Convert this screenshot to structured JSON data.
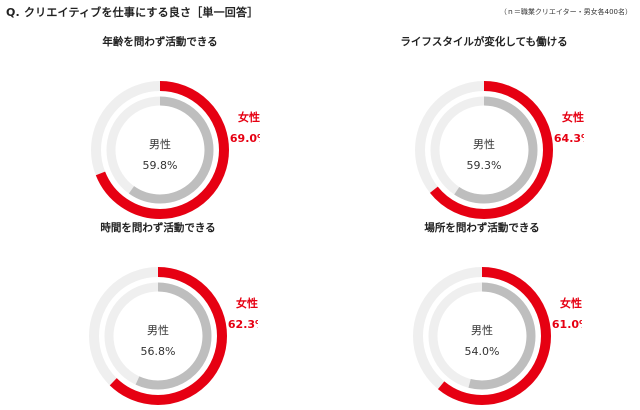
{
  "title": "Q. クリエイティブを仕事にする良さ［単一回答］",
  "note": "（ｎ＝職業クリエイター・男女各400名）",
  "colors": {
    "female": "#e60012",
    "male": "#bebebe",
    "track": "#efefef"
  },
  "chart_data": [
    {
      "type": "pie",
      "title": "年齢を問わず活動できる",
      "series": [
        {
          "name": "女性",
          "value": 69.0,
          "label": "69.0%"
        },
        {
          "name": "男性",
          "value": 59.8,
          "label": "59.8%"
        }
      ]
    },
    {
      "type": "pie",
      "title": "ライフスタイルが変化しても働ける",
      "series": [
        {
          "name": "女性",
          "value": 64.3,
          "label": "64.3%"
        },
        {
          "name": "男性",
          "value": 59.3,
          "label": "59.3%"
        }
      ]
    },
    {
      "type": "pie",
      "title": "時間を問わず活動できる",
      "series": [
        {
          "name": "女性",
          "value": 62.3,
          "label": "62.3%"
        },
        {
          "name": "男性",
          "value": 56.8,
          "label": "56.8%"
        }
      ]
    },
    {
      "type": "pie",
      "title": "場所を問わず活動できる",
      "series": [
        {
          "name": "女性",
          "value": 61.0,
          "label": "61.0%"
        },
        {
          "name": "男性",
          "value": 54.0,
          "label": "54.0%"
        }
      ]
    }
  ]
}
